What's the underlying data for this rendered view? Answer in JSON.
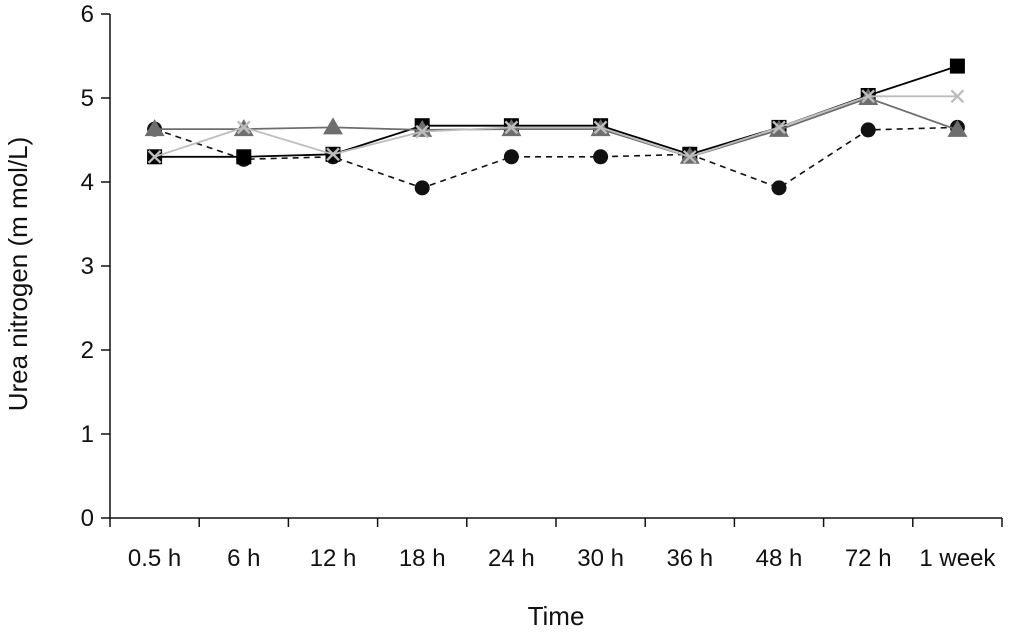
{
  "chart_data": {
    "type": "line",
    "title": "",
    "xlabel": "Time",
    "ylabel": "Urea nitrogen (m mol/L)",
    "categories": [
      "0.5 h",
      "6 h",
      "12 h",
      "18 h",
      "24 h",
      "30 h",
      "36 h",
      "48 h",
      "72 h",
      "1 week"
    ],
    "y_ticks": [
      "0",
      "1",
      "2",
      "3",
      "4",
      "5",
      "6"
    ],
    "ylim": [
      0,
      6
    ],
    "grid": false,
    "legend": "none",
    "series": [
      {
        "marker": "circle",
        "line": "dashed",
        "color": "#111111",
        "values": [
          4.63,
          4.27,
          4.3,
          3.93,
          4.3,
          4.3,
          4.33,
          3.93,
          4.62,
          4.65
        ]
      },
      {
        "marker": "square",
        "line": "solid",
        "color": "#000000",
        "values": [
          4.3,
          4.3,
          4.33,
          4.67,
          4.67,
          4.67,
          4.33,
          4.65,
          5.03,
          5.38
        ]
      },
      {
        "marker": "triangle",
        "line": "solid",
        "color": "#6e6e6e",
        "values": [
          4.63,
          4.63,
          4.65,
          4.62,
          4.63,
          4.63,
          4.3,
          4.62,
          5.0,
          4.62
        ]
      },
      {
        "marker": "x",
        "line": "solid",
        "color": "#bdbdbd",
        "values": [
          4.3,
          4.65,
          4.33,
          4.6,
          4.65,
          4.65,
          4.3,
          4.65,
          5.02,
          5.02
        ]
      }
    ]
  }
}
